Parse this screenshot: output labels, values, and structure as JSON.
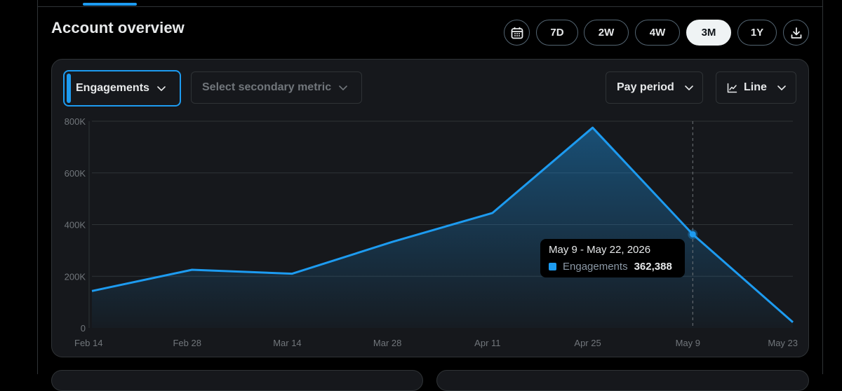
{
  "title": "Account overview",
  "ranges": [
    {
      "label": "7D",
      "active": false
    },
    {
      "label": "2W",
      "active": false
    },
    {
      "label": "4W",
      "active": false
    },
    {
      "label": "3M",
      "active": true
    },
    {
      "label": "1Y",
      "active": false
    }
  ],
  "controls": {
    "primary_metric": "Engagements",
    "secondary_metric_placeholder": "Select secondary metric",
    "period": "Pay period",
    "chart_style": "Line"
  },
  "tooltip": {
    "title": "May 9 - May 22, 2026",
    "label": "Engagements",
    "value": "362,388"
  },
  "colors": {
    "accent": "#1d9bf0",
    "background": "#000000",
    "card": "#16181c",
    "grid": "#2f3336"
  },
  "icons": {
    "calendar": "calendar-icon",
    "download": "download-icon",
    "chevron": "chevron-down-icon",
    "line_chart": "line-chart-icon"
  },
  "chart_data": {
    "type": "area",
    "x": [
      "Feb 14",
      "Feb 28",
      "Mar 14",
      "Mar 28",
      "Apr 11",
      "Apr 25",
      "May 9",
      "May 23"
    ],
    "series": [
      {
        "name": "Engagements",
        "values": [
          143000,
          225000,
          210000,
          333000,
          445000,
          775000,
          362388,
          22000
        ]
      }
    ],
    "yticks": [
      0,
      200000,
      400000,
      600000,
      800000
    ],
    "ytick_labels": [
      "0",
      "200K",
      "400K",
      "600K",
      "800K"
    ],
    "ylim": [
      0,
      800000
    ],
    "grid": true,
    "highlight_x": "May 9"
  }
}
